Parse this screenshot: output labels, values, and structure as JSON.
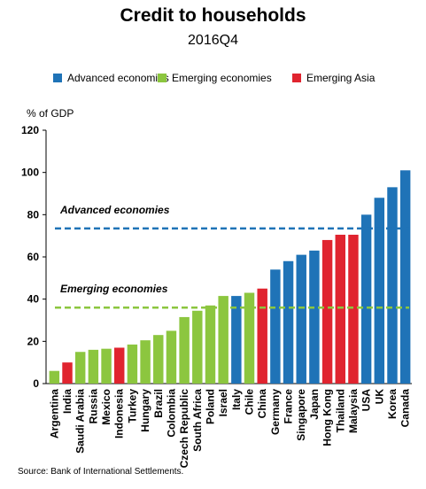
{
  "title": "Credit to households",
  "subtitle": "2016Q4",
  "legend": [
    {
      "label": "Advanced economies",
      "color": "#1f73b7"
    },
    {
      "label": "Emerging economies",
      "color": "#8cc63f"
    },
    {
      "label": "Emerging Asia",
      "color": "#e0242f"
    }
  ],
  "ylabel_text": "% of GDP",
  "source": "Source: Bank of International Settlements.",
  "chart_data": {
    "type": "bar",
    "ylabel": "% of GDP",
    "ylim": [
      0,
      120
    ],
    "yticks": [
      0,
      20,
      40,
      60,
      80,
      100,
      120
    ],
    "grid": false,
    "categories": [
      "Argentina",
      "India",
      "Saudi Arabia",
      "Russia",
      "Mexico",
      "Indonesia",
      "Turkey",
      "Hungary",
      "Brazil",
      "Colombia",
      "Czech Republic",
      "South Africa",
      "Poland",
      "Israel",
      "Italy",
      "Chile",
      "China",
      "Germany",
      "France",
      "Singapore",
      "Japan",
      "Hong Kong",
      "Thailand",
      "Malaysia",
      "USA",
      "UK",
      "Korea",
      "Canada"
    ],
    "values": [
      6,
      10,
      15,
      16,
      16.5,
      17,
      18.5,
      20.5,
      23,
      25,
      31.5,
      34.5,
      37,
      41.5,
      41.5,
      43,
      45,
      54,
      58,
      61,
      63,
      68,
      70.5,
      70.5,
      80,
      88,
      93,
      101
    ],
    "groups": [
      "Emerging economies",
      "Emerging Asia",
      "Emerging economies",
      "Emerging economies",
      "Emerging economies",
      "Emerging Asia",
      "Emerging economies",
      "Emerging economies",
      "Emerging economies",
      "Emerging economies",
      "Emerging economies",
      "Emerging economies",
      "Emerging economies",
      "Emerging economies",
      "Advanced economies",
      "Emerging economies",
      "Emerging Asia",
      "Advanced economies",
      "Advanced economies",
      "Advanced economies",
      "Advanced economies",
      "Emerging Asia",
      "Emerging Asia",
      "Emerging Asia",
      "Advanced economies",
      "Advanced economies",
      "Advanced economies",
      "Advanced economies"
    ],
    "reference_lines": [
      {
        "label": "Advanced economies",
        "value": 73.5,
        "color": "#1f73b7"
      },
      {
        "label": "Emerging economies",
        "value": 36,
        "color": "#8cc63f"
      }
    ]
  }
}
